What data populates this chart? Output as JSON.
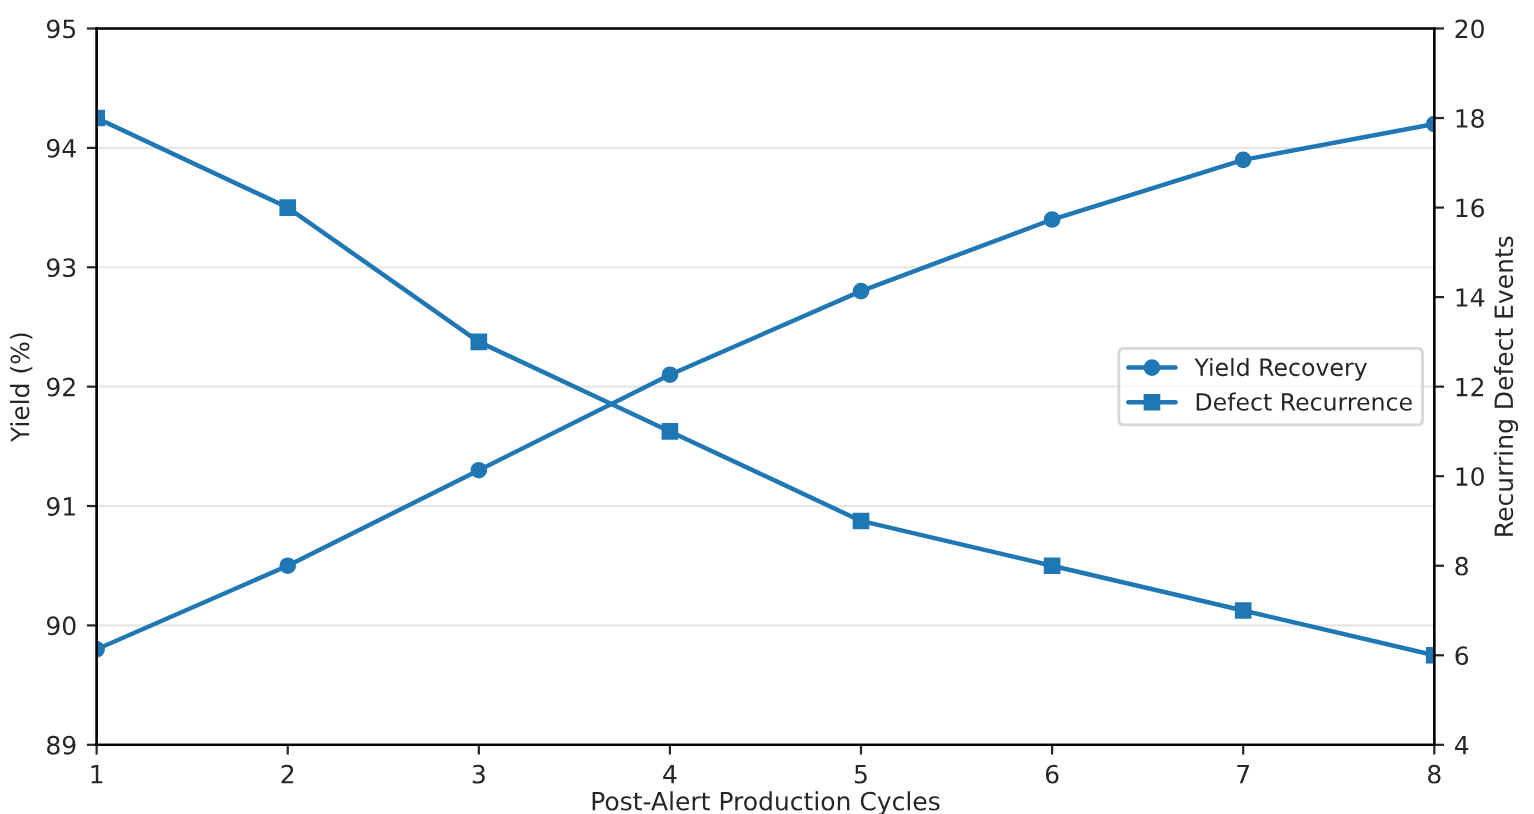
{
  "chart_data": {
    "type": "line",
    "xlabel": "Post-Alert Production Cycles",
    "ylabel": "Yield (%)",
    "y2label": "Recurring Defect Events",
    "x": [
      1,
      2,
      3,
      4,
      5,
      6,
      7,
      8
    ],
    "xlim": [
      1,
      8
    ],
    "xticks": [
      1,
      2,
      3,
      4,
      5,
      6,
      7,
      8
    ],
    "ylim": [
      89,
      95
    ],
    "yticks": [
      89,
      90,
      91,
      92,
      93,
      94,
      95
    ],
    "y2lim": [
      4,
      20
    ],
    "y2ticks": [
      4,
      6,
      8,
      10,
      12,
      14,
      16,
      18,
      20
    ],
    "grid": "y",
    "legend": "right",
    "series": [
      {
        "name": "Yield Recovery",
        "color": "#1f77b4",
        "marker": "circle",
        "values": [
          89.8,
          90.5,
          91.3,
          92.1,
          92.8,
          93.4,
          93.9,
          94.2
        ]
      },
      {
        "name": "Defect Recurrence",
        "color": "#1f77b4",
        "marker": "square",
        "axis": "y2",
        "values": [
          18,
          16,
          13,
          11,
          9,
          8,
          7,
          6
        ]
      }
    ]
  }
}
